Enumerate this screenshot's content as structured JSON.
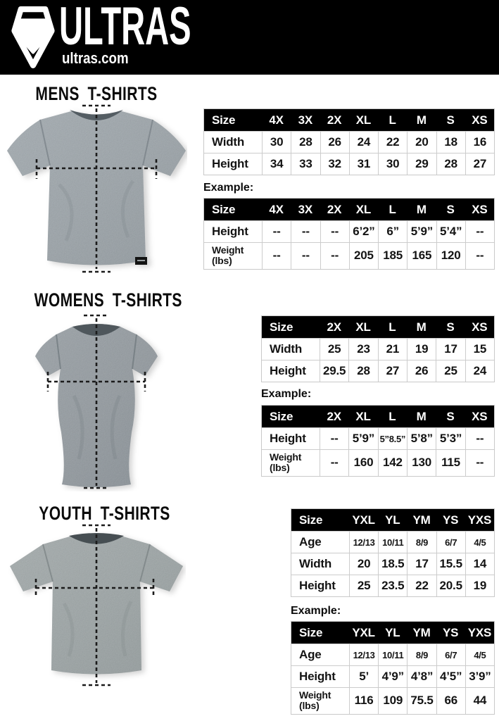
{
  "header": {
    "brand": "ULTRAS",
    "site": "ultras.com",
    "logo_icon": "pentagon-shield-icon",
    "bg_color": "#000000"
  },
  "colors": {
    "table_header_bg": "#000000",
    "table_border": "#cccccc",
    "mens_shirt_gray": "#8d969c",
    "womens_shirt_gray": "#838b91",
    "youth_shirt_gray": "#8e9798"
  },
  "sections": {
    "mens": {
      "title": "MENS T-SHIRTS",
      "example_label": "Example:",
      "size_table": {
        "header": [
          "Size",
          "4X",
          "3X",
          "2X",
          "XL",
          "L",
          "M",
          "S",
          "XS"
        ],
        "rows": [
          {
            "label_lines": [
              "Width"
            ],
            "values": [
              "30",
              "28",
              "26",
              "24",
              "22",
              "20",
              "18",
              "16"
            ]
          },
          {
            "label_lines": [
              "Height"
            ],
            "values": [
              "34",
              "33",
              "32",
              "31",
              "30",
              "29",
              "28",
              "27"
            ]
          }
        ]
      },
      "example_table": {
        "header": [
          "Size",
          "4X",
          "3X",
          "2X",
          "XL",
          "L",
          "M",
          "S",
          "XS"
        ],
        "rows": [
          {
            "label_lines": [
              "Height"
            ],
            "values": [
              "--",
              "--",
              "--",
              "6’2”",
              "6”",
              "5’9”",
              "5’4”",
              "--"
            ]
          },
          {
            "label_lines": [
              "Weight",
              "(lbs)"
            ],
            "values": [
              "--",
              "--",
              "--",
              "205",
              "185",
              "165",
              "120",
              "--"
            ]
          }
        ]
      }
    },
    "womens": {
      "title": "WOMENS T-SHIRTS",
      "example_label": "Example:",
      "size_table": {
        "header": [
          "Size",
          "2X",
          "XL",
          "L",
          "M",
          "S",
          "XS"
        ],
        "rows": [
          {
            "label_lines": [
              "Width"
            ],
            "values": [
              "25",
              "23",
              "21",
              "19",
              "17",
              "15"
            ]
          },
          {
            "label_lines": [
              "Height"
            ],
            "values": [
              "29.5",
              "28",
              "27",
              "26",
              "25",
              "24"
            ]
          }
        ]
      },
      "example_table": {
        "header": [
          "Size",
          "2X",
          "XL",
          "L",
          "M",
          "S",
          "XS"
        ],
        "rows": [
          {
            "label_lines": [
              "Height"
            ],
            "values": [
              "--",
              "5’9”",
              "5”8.5”",
              "5’8”",
              "5’3”",
              "--"
            ]
          },
          {
            "label_lines": [
              "Weight",
              "(lbs)"
            ],
            "values": [
              "--",
              "160",
              "142",
              "130",
              "115",
              "--"
            ]
          }
        ]
      }
    },
    "youth": {
      "title": "YOUTH T-SHIRTS",
      "example_label": "Example:",
      "size_table": {
        "header": [
          "Size",
          "YXL",
          "YL",
          "YM",
          "YS",
          "YXS"
        ],
        "rows": [
          {
            "label_lines": [
              "Age"
            ],
            "values": [
              "12/13",
              "10/11",
              "8/9",
              "6/7",
              "4/5"
            ]
          },
          {
            "label_lines": [
              "Width"
            ],
            "values": [
              "20",
              "18.5",
              "17",
              "15.5",
              "14"
            ]
          },
          {
            "label_lines": [
              "Height"
            ],
            "values": [
              "25",
              "23.5",
              "22",
              "20.5",
              "19"
            ]
          }
        ]
      },
      "example_table": {
        "header": [
          "Size",
          "YXL",
          "YL",
          "YM",
          "YS",
          "YXS"
        ],
        "rows": [
          {
            "label_lines": [
              "Age"
            ],
            "values": [
              "12/13",
              "10/11",
              "8/9",
              "6/7",
              "4/5"
            ]
          },
          {
            "label_lines": [
              "Height"
            ],
            "values": [
              "5’",
              "4’9”",
              "4’8”",
              "4’5”",
              "3’9”"
            ]
          },
          {
            "label_lines": [
              "Weight",
              "(lbs)"
            ],
            "values": [
              "116",
              "109",
              "75.5",
              "66",
              "44"
            ]
          }
        ]
      }
    }
  }
}
